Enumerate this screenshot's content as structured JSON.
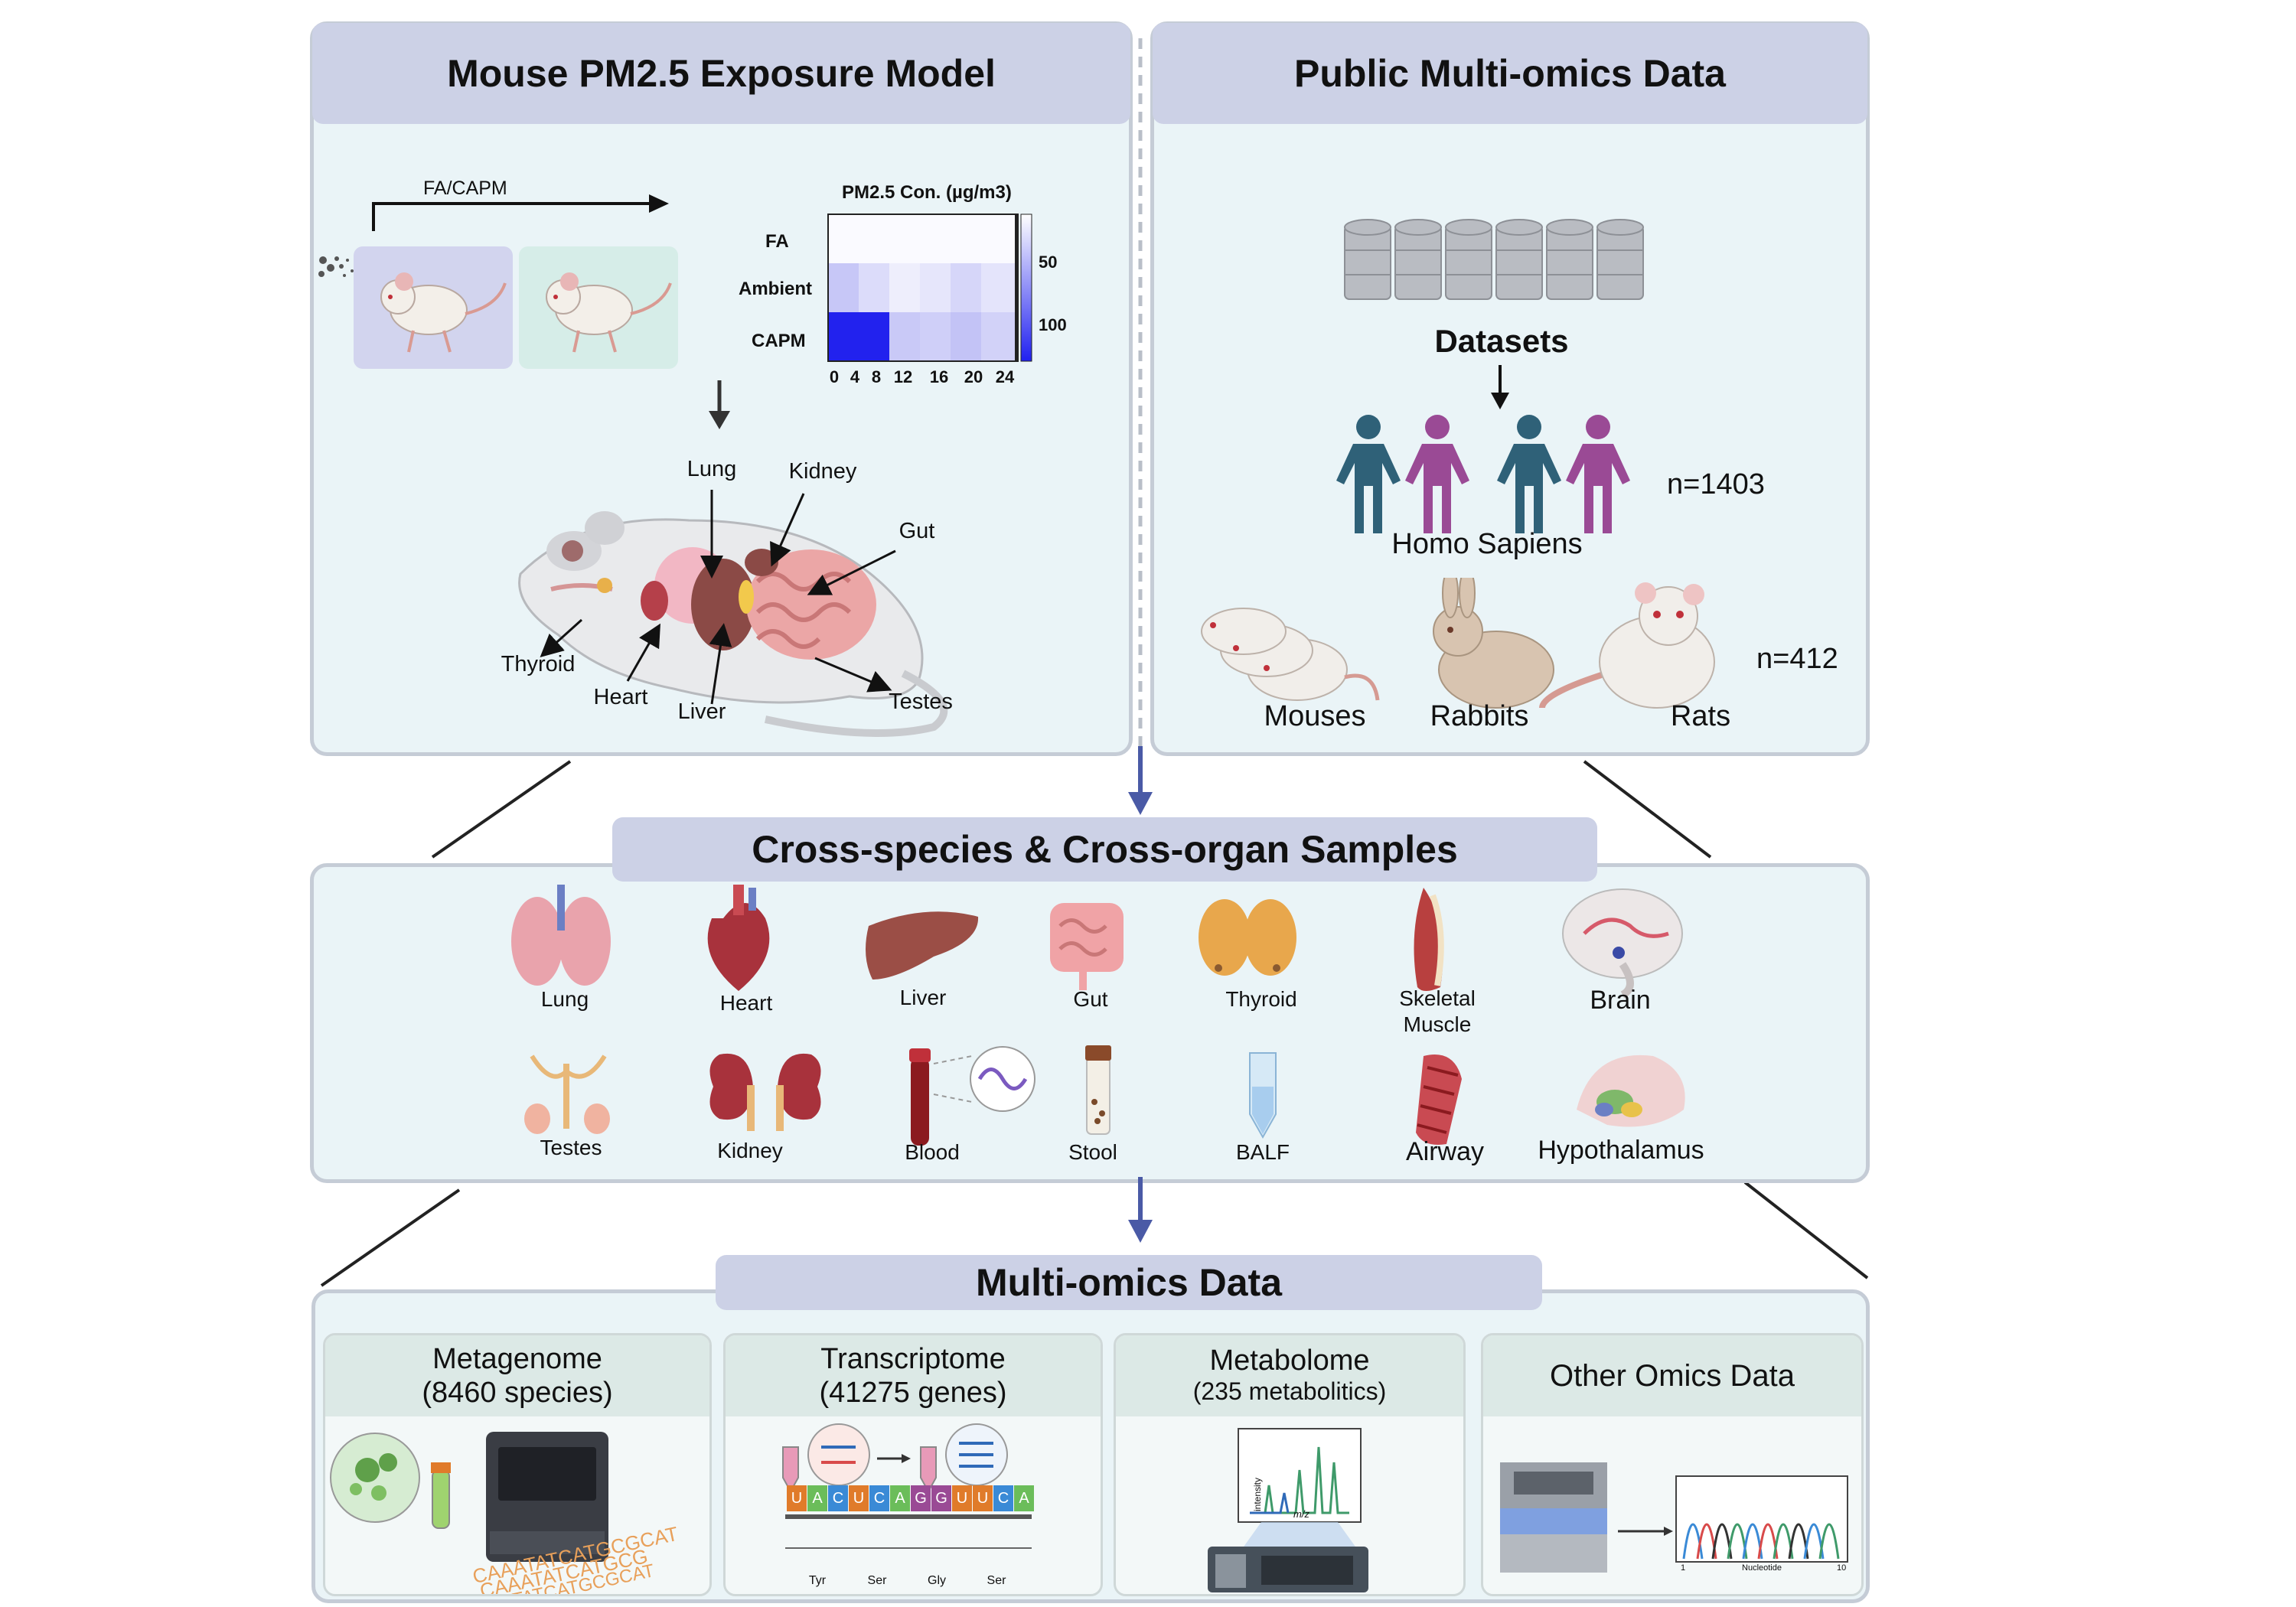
{
  "panels": {
    "mouse_model": {
      "title": "Mouse PM2.5 Exposure Model",
      "exposure_label": "FA/CAPM",
      "heatmap": {
        "title": "PM2.5 Con. (µg/m3)",
        "rows": [
          "FA",
          "Ambient",
          "CAPM"
        ],
        "x_ticks": [
          "0",
          "4",
          "8",
          "12",
          "16",
          "20",
          "24"
        ],
        "colorbar_ticks": [
          "50",
          "100"
        ]
      },
      "organs": {
        "lung": "Lung",
        "kidney": "Kidney",
        "gut": "Gut",
        "thyroid": "Thyroid",
        "heart": "Heart",
        "liver": "Liver",
        "testes": "Testes"
      }
    },
    "public_data": {
      "title": "Public Multi-omics Data",
      "datasets_label": "Datasets",
      "human_count": "n=1403",
      "human_label": "Homo Sapiens",
      "animal_count": "n=412",
      "animals": [
        "Mouses",
        "Rabbits",
        "Rats"
      ]
    },
    "samples": {
      "title": "Cross-species & Cross-organ Samples",
      "row1": [
        "Lung",
        "Heart",
        "Liver",
        "Gut",
        "Thyroid",
        "Skeletal\nMuscle",
        "Brain"
      ],
      "row2": [
        "Testes",
        "Kidney",
        "Blood",
        "Stool",
        "BALF",
        "Airway",
        "Hypothalamus"
      ]
    },
    "omics": {
      "title": "Multi-omics Data",
      "boxes": [
        {
          "line1": "Metagenome",
          "line2": "(8460 species)"
        },
        {
          "line1": "Transcriptome",
          "line2": "(41275 genes)"
        },
        {
          "line1": "Metabolome",
          "line2": "(235 metabolitics)"
        },
        {
          "line1": "Other Omics Data",
          "line2": ""
        }
      ],
      "dna_text": [
        "CAAATATCATGCGCAT",
        "CAAATATCATGCG",
        "CAAATATCATGCGCAT"
      ],
      "codon_letters": [
        "U",
        "A",
        "C",
        "U",
        "C",
        "A",
        "G",
        "G",
        "U",
        "U",
        "C",
        "A"
      ],
      "codon_names": [
        "Tyr",
        "Ser",
        "Gly",
        "Ser"
      ],
      "ms_axis": {
        "y": "intensity",
        "x": "m/z"
      },
      "seq_axis": {
        "x": "Nucleotide",
        "start": "1",
        "end": "10"
      }
    }
  },
  "colors": {
    "panel_bg": "#eaf4f7",
    "header_bg": "#ccd1e6",
    "arrow_blue": "#4a5aa6",
    "heat_max": "#2323f0",
    "human_teal": "#2f6178",
    "human_purple": "#9a4a95"
  }
}
